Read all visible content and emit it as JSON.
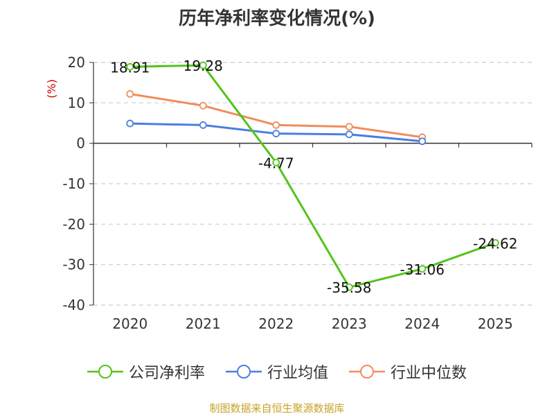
{
  "chart_data": {
    "type": "line",
    "title": "历年净利率变化情况(%)",
    "ylabel": "(%)",
    "categories": [
      "2020",
      "2021",
      "2022",
      "2023",
      "2024",
      "2025"
    ],
    "ylim": [
      -40,
      20
    ],
    "yticks": [
      20,
      10,
      0,
      -10,
      -20,
      -30,
      -40
    ],
    "grid": true,
    "legend_position": "bottom",
    "series": [
      {
        "name": "公司净利率",
        "color": "#52c41a",
        "values": [
          18.91,
          19.28,
          -4.77,
          -35.58,
          -31.06,
          -24.62
        ],
        "labels": [
          "18.91",
          "19.28",
          "-4.77",
          "-35.58",
          "-31.06",
          "-24.62"
        ]
      },
      {
        "name": "行业均值",
        "color": "#4a7ee0",
        "values": [
          4.9,
          4.5,
          2.4,
          2.2,
          0.5,
          null
        ]
      },
      {
        "name": "行业中位数",
        "color": "#f28c5b",
        "values": [
          12.2,
          9.3,
          4.5,
          4.1,
          1.5,
          null
        ]
      }
    ]
  },
  "footer": {
    "source": "制图数据来自恒生聚源数据库"
  }
}
